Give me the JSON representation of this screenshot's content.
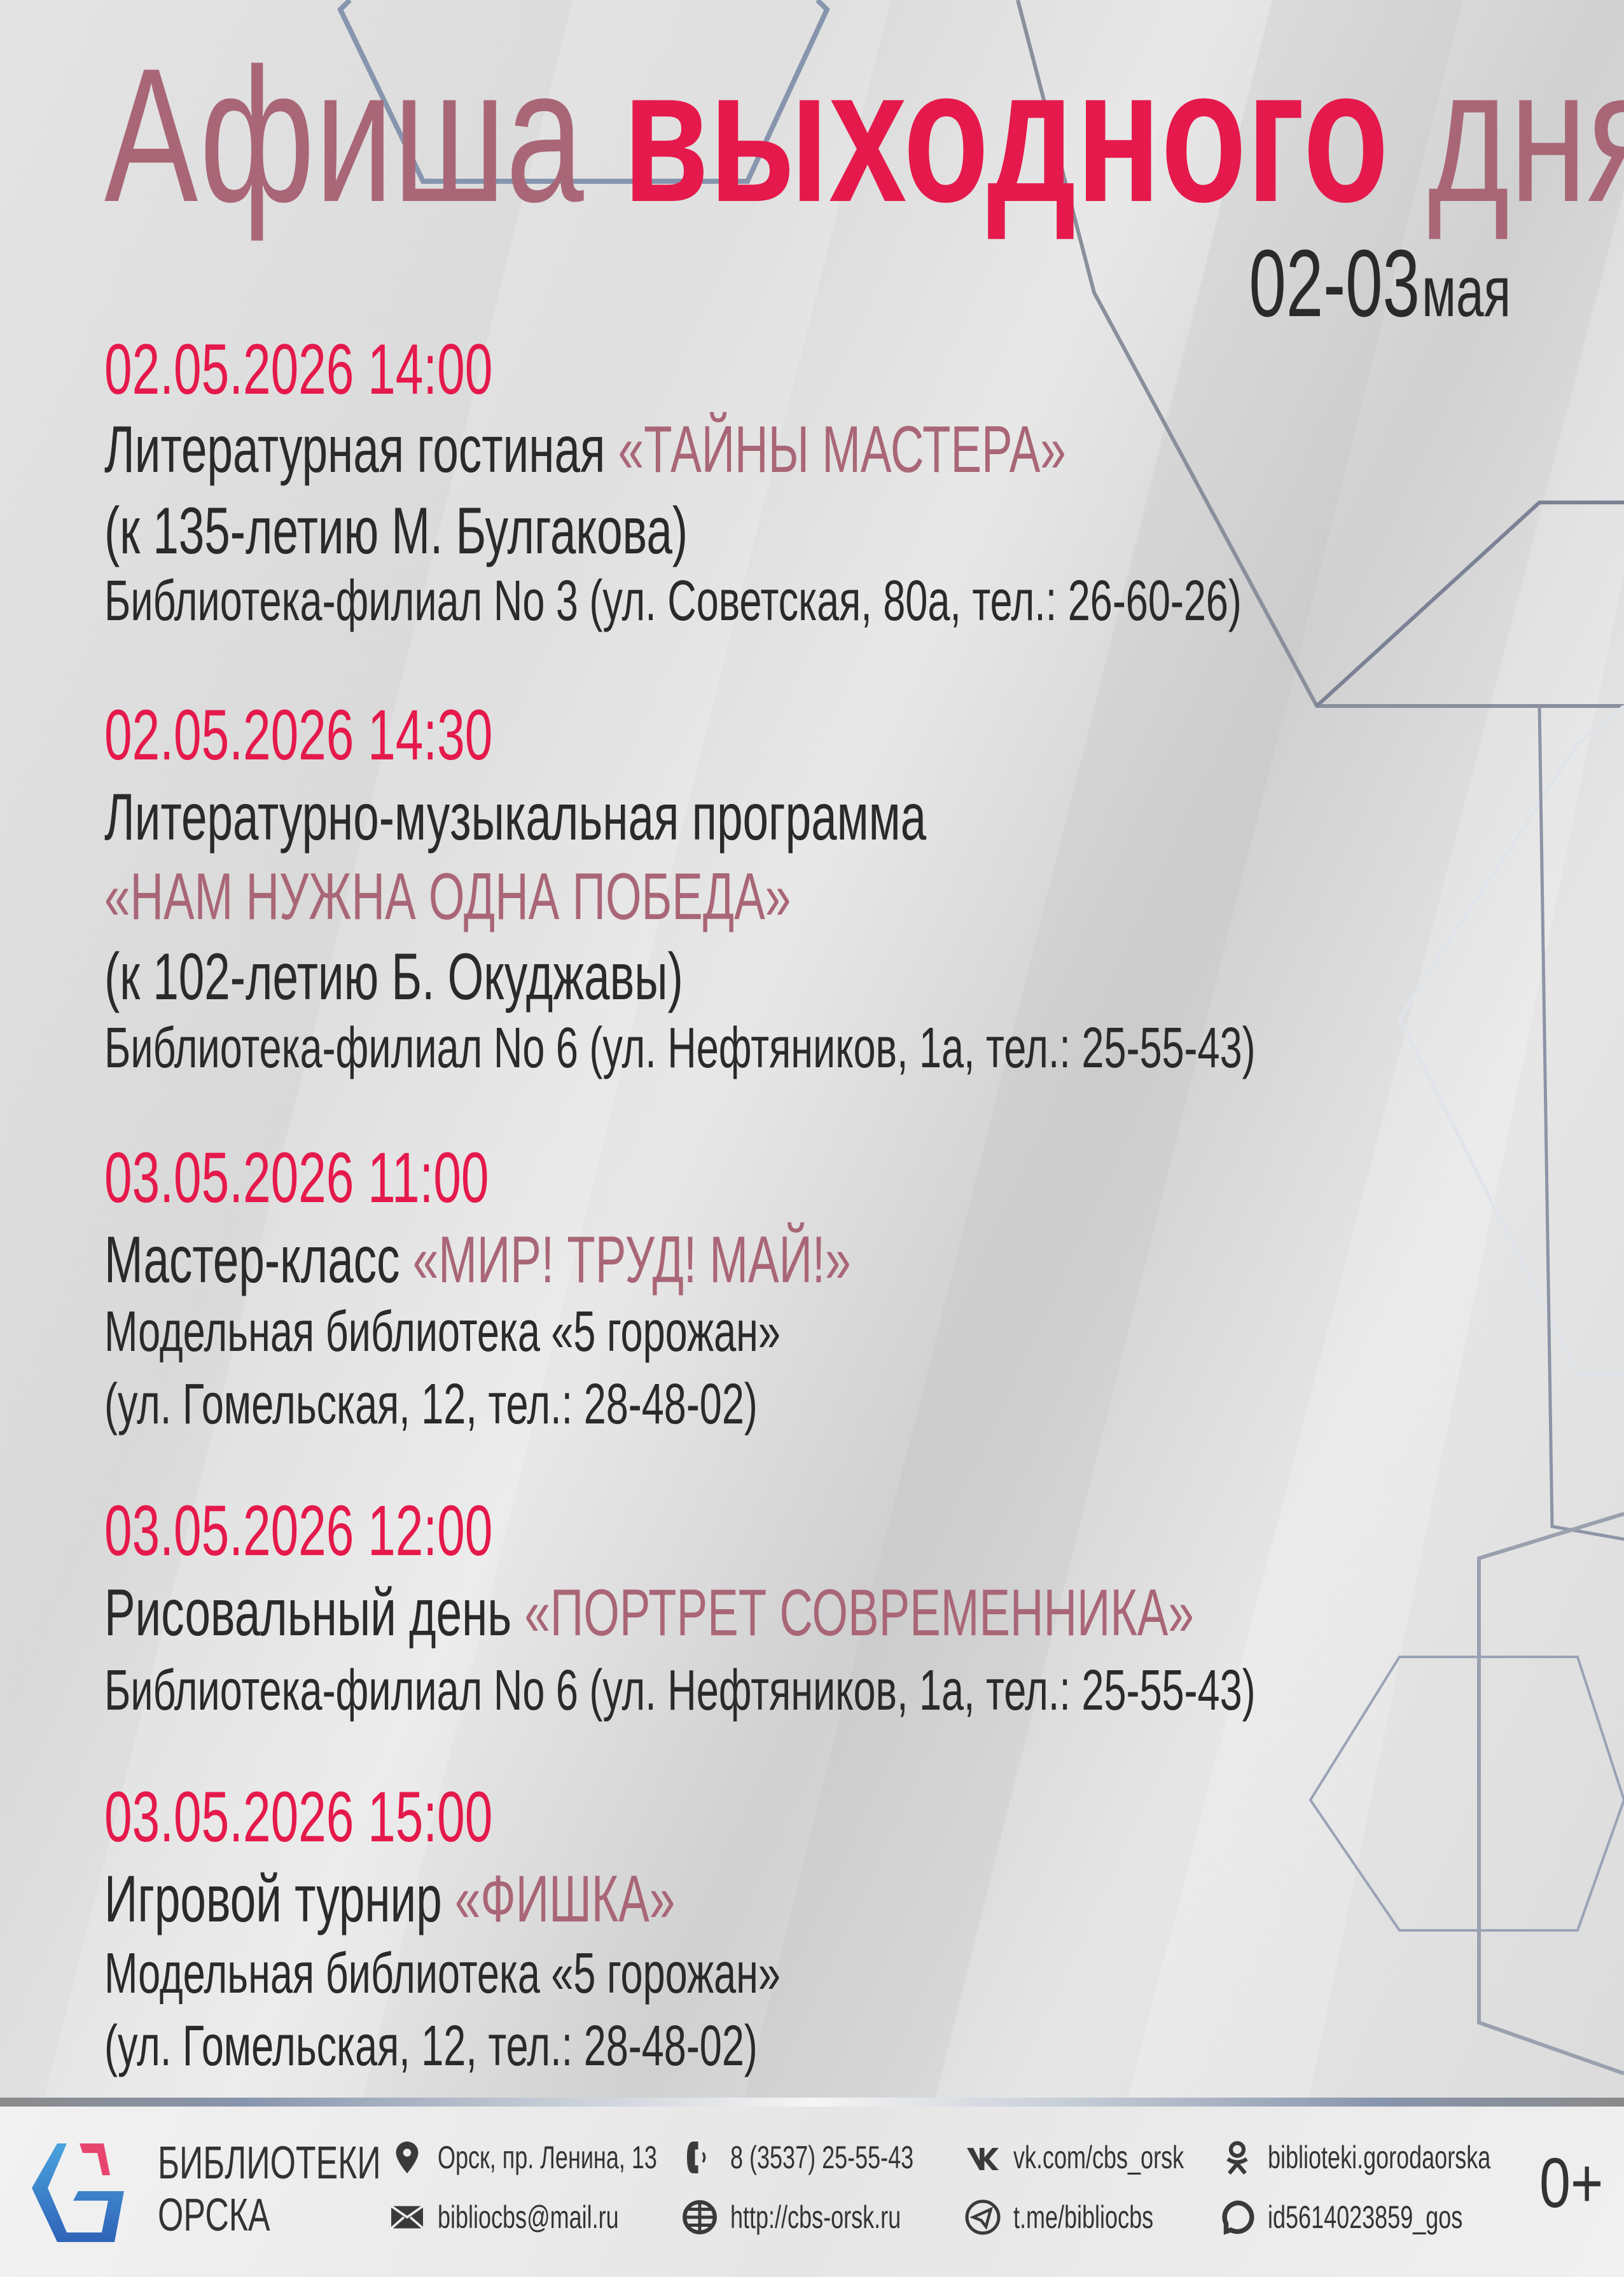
{
  "header": {
    "title_part1": "Афиша",
    "title_part2": "выходного",
    "title_part3": "дня",
    "dates_num": "02-03",
    "dates_month": "мая"
  },
  "colors": {
    "accent_red": "#e5194b",
    "accent_mauve": "#a96677",
    "text": "#2a2a2a"
  },
  "events": [
    {
      "datetime": "02.05.2026  14:00",
      "line1_text": "Литературная гостиная ",
      "line1_highlight": "«ТАЙНЫ МАСТЕРА»",
      "line2": "(к 135-летию М. Булгакова)",
      "line3": "Библиотека-филиал No 3 (ул. Советская, 80а, тел.: 26-60-26)"
    },
    {
      "datetime": "02.05.2026  14:30",
      "line1_text": "Литературно-музыкальная программа",
      "line1_highlight": "«НАМ НУЖНА ОДНА ПОБЕДА»",
      "line2": "(к 102-летию Б. Окуджавы)",
      "line3": "Библиотека-филиал No 6 (ул. Нефтяников, 1а, тел.: 25-55-43)"
    },
    {
      "datetime": "03.05.2026  11:00",
      "line1_text": "Мастер-класс ",
      "line1_highlight": "«МИР! ТРУД! МАЙ!»",
      "line2": "Модельная библиотека «5 горожан»",
      "line3": "(ул. Гомельская, 12, тел.: 28-48-02)"
    },
    {
      "datetime": "03.05.2026  12:00",
      "line1_text": "Рисовальный день ",
      "line1_highlight": "«ПОРТРЕТ СОВРЕМЕННИКА»",
      "line2": "Библиотека-филиал No 6 (ул. Нефтяников, 1а, тел.: 25-55-43)"
    },
    {
      "datetime": "03.05.2026  15:00",
      "line1_text": "Игровой турнир ",
      "line1_highlight": "«ФИШКА»",
      "line2": "Модельная библиотека «5 горожан»",
      "line3": "(ул. Гомельская, 12, тел.: 28-48-02)"
    }
  ],
  "footer": {
    "logo_line1": "БИБЛИОТЕКИ",
    "logo_line2": "ОРСКА",
    "address": "Орск, пр. Ленина, 13",
    "phone": "8 (3537) 25-55-43",
    "vk": "vk.com/cbs_orsk",
    "ok": "biblioteki.gorodaorska",
    "email": "bibliocbs@mail.ru",
    "site": "http://cbs-orsk.ru",
    "telegram": "t.me/bibliocbs",
    "max": "id5614023859_gos",
    "age_rating": "0+"
  }
}
